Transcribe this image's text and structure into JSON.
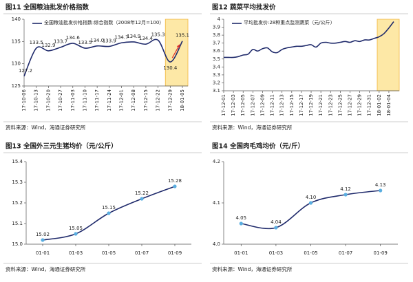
{
  "chart_data": [
    {
      "type": "line",
      "title": "图11 全国粮油批发价格指数",
      "categories": [
        "17-10-06",
        "17-10-13",
        "17-10-20",
        "17-10-27",
        "17-11-03",
        "17-11-10",
        "17-11-17",
        "17-11-24",
        "17-12-01",
        "17-12-08",
        "17-12-15",
        "17-12-22",
        "17-12-29",
        "18-01-05"
      ],
      "series": [
        {
          "name": "全国粮油批发价格指数:综合指数（2008年12月=100）",
          "color": "#1f2a6b",
          "values": [
            127.2,
            133.5,
            132.9,
            133.7,
            134.6,
            133.5,
            134.0,
            133.9,
            134.7,
            134.9,
            134.4,
            135.3,
            130.4,
            135.1
          ],
          "value_labels": [
            "127.2",
            "133.5",
            "132.9",
            "133.7",
            "134.6",
            "133.5",
            "134.0",
            "133.9",
            "134.7",
            "134.9",
            "134.4",
            "135.3",
            "130.4",
            "135.1"
          ]
        }
      ],
      "ylim": [
        125,
        140
      ],
      "yticks": [
        125,
        130,
        135,
        140
      ],
      "legend": "upper left",
      "source": "资料来源：Wind，海通证券研究所"
    },
    {
      "type": "line",
      "title": "图12 蔬菜平均批发价",
      "categories": [
        "17-12-01",
        null,
        "17-12-03",
        null,
        "17-12-05",
        null,
        "17-12-07",
        null,
        "17-12-09",
        null,
        "17-12-11",
        null,
        "17-12-13",
        null,
        "17-12-15",
        null,
        "17-12-17",
        null,
        "17-12-19",
        null,
        "17-12-21",
        null,
        "17-12-23",
        null,
        "17-12-25",
        null,
        "17-12-27",
        null,
        "17-12-29",
        null,
        "17-12-31",
        null,
        "18-01-02",
        null,
        "18-01-04",
        null
      ],
      "series": [
        {
          "name": "平均批发价:28种重点监测蔬菜（元/公斤）",
          "color": "#1f2a6b",
          "values": [
            3.52,
            3.52,
            3.52,
            3.53,
            3.55,
            3.56,
            3.62,
            3.6,
            3.63,
            3.64,
            3.59,
            3.58,
            3.62,
            3.64,
            3.65,
            3.66,
            3.66,
            3.67,
            3.68,
            3.65,
            3.7,
            3.71,
            3.7,
            3.7,
            3.71,
            3.72,
            3.71,
            3.73,
            3.72,
            3.74,
            3.74,
            3.76,
            3.78,
            3.82,
            3.89,
            3.97
          ]
        }
      ],
      "ylim": [
        3.1,
        4
      ],
      "yticks": [
        3.1,
        3.2,
        3.3,
        3.4,
        3.5,
        3.6,
        3.7,
        3.8,
        3.9,
        4
      ],
      "legend": "upper left",
      "source": "资料来源：Wind，海通证券研究所"
    },
    {
      "type": "line",
      "title": "图13 全国外三元生猪均价（元/公斤）",
      "categories": [
        "01-01",
        "01-03",
        "01-05",
        "01-07",
        "01-09"
      ],
      "values": [
        15.02,
        15.05,
        15.15,
        15.22,
        15.28
      ],
      "value_labels": [
        "15.02",
        "15.05",
        "15.15",
        "15.22",
        "15.28"
      ],
      "color": "#1f2a6b",
      "marker_color": "#5aaee0",
      "ylim": [
        15.0,
        15.4
      ],
      "yticks": [
        {
          "value": 15.0,
          "label": "15.0"
        },
        15.1,
        15.2,
        15.3,
        15.4
      ],
      "source": "资料来源：Wind，海通证券研究所"
    },
    {
      "type": "line",
      "title": "图14 全国肉毛鸡均价（元/斤）",
      "categories": [
        "01-01",
        "01-03",
        "01-05",
        "01-07",
        "01-09"
      ],
      "values": [
        4.05,
        4.04,
        4.1,
        4.12,
        4.13
      ],
      "value_labels": [
        "4.05",
        "4.04",
        "4.10",
        "4.12",
        "4.13"
      ],
      "color": "#1f2a6b",
      "marker_color": "#5aaee0",
      "ylim": [
        4.0,
        4.2
      ],
      "yticks": [
        {
          "value": 4.0,
          "label": "4.0"
        },
        4.1,
        4.2
      ],
      "source": "资料来源：Wind，海通证券研究所"
    }
  ]
}
